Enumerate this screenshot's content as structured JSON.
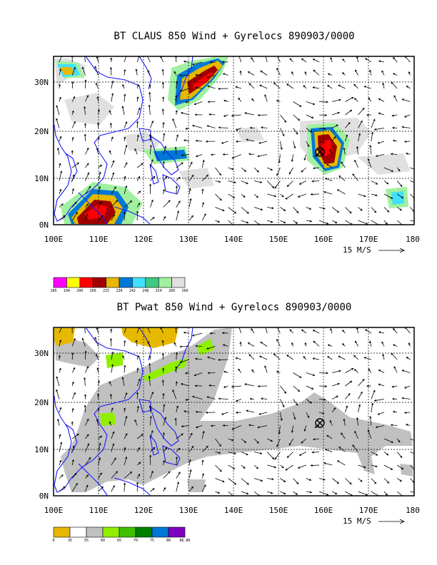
{
  "panels": [
    {
      "id": "top",
      "title": "BT CLAUS 850 Wind + Gyrelocs 890903/0000",
      "x_ticks": [
        "100E",
        "110E",
        "120E",
        "130E",
        "140E",
        "150E",
        "160E",
        "170E",
        "180"
      ],
      "y_ticks": [
        "0N",
        "10N",
        "20N",
        "30N"
      ],
      "wind_scale_label": "15 M/S",
      "legend": {
        "labels": [
          "185",
          "194",
          "200",
          "206",
          "215",
          "230",
          "242",
          "248",
          "254",
          "260",
          "266"
        ],
        "colors": [
          "#ff00ff",
          "#ffff00",
          "#ff0000",
          "#a00000",
          "#e6b800",
          "#0078d7",
          "#40e0ff",
          "#40c880",
          "#a0f0a0",
          "#e0e0e0"
        ]
      }
    },
    {
      "id": "bottom",
      "title": "BT Pwat 850 Wind + Gyrelocs 890903/0000",
      "x_ticks": [
        "100E",
        "110E",
        "120E",
        "130E",
        "140E",
        "150E",
        "160E",
        "170E",
        "180"
      ],
      "y_ticks": [
        "0N",
        "10N",
        "20N",
        "30N"
      ],
      "wind_scale_label": "15 M/S",
      "legend": {
        "labels": [
          "0",
          "35",
          "55",
          "60",
          "65",
          "70",
          "75",
          "80",
          "86.86"
        ],
        "colors": [
          "#e6b800",
          "#ffffff",
          "#c0c0c0",
          "#90f000",
          "#40c000",
          "#008000",
          "#0078d7",
          "#8000c0"
        ]
      }
    }
  ],
  "gyre_location": {
    "lon": 159.5,
    "lat": 15.5
  }
}
